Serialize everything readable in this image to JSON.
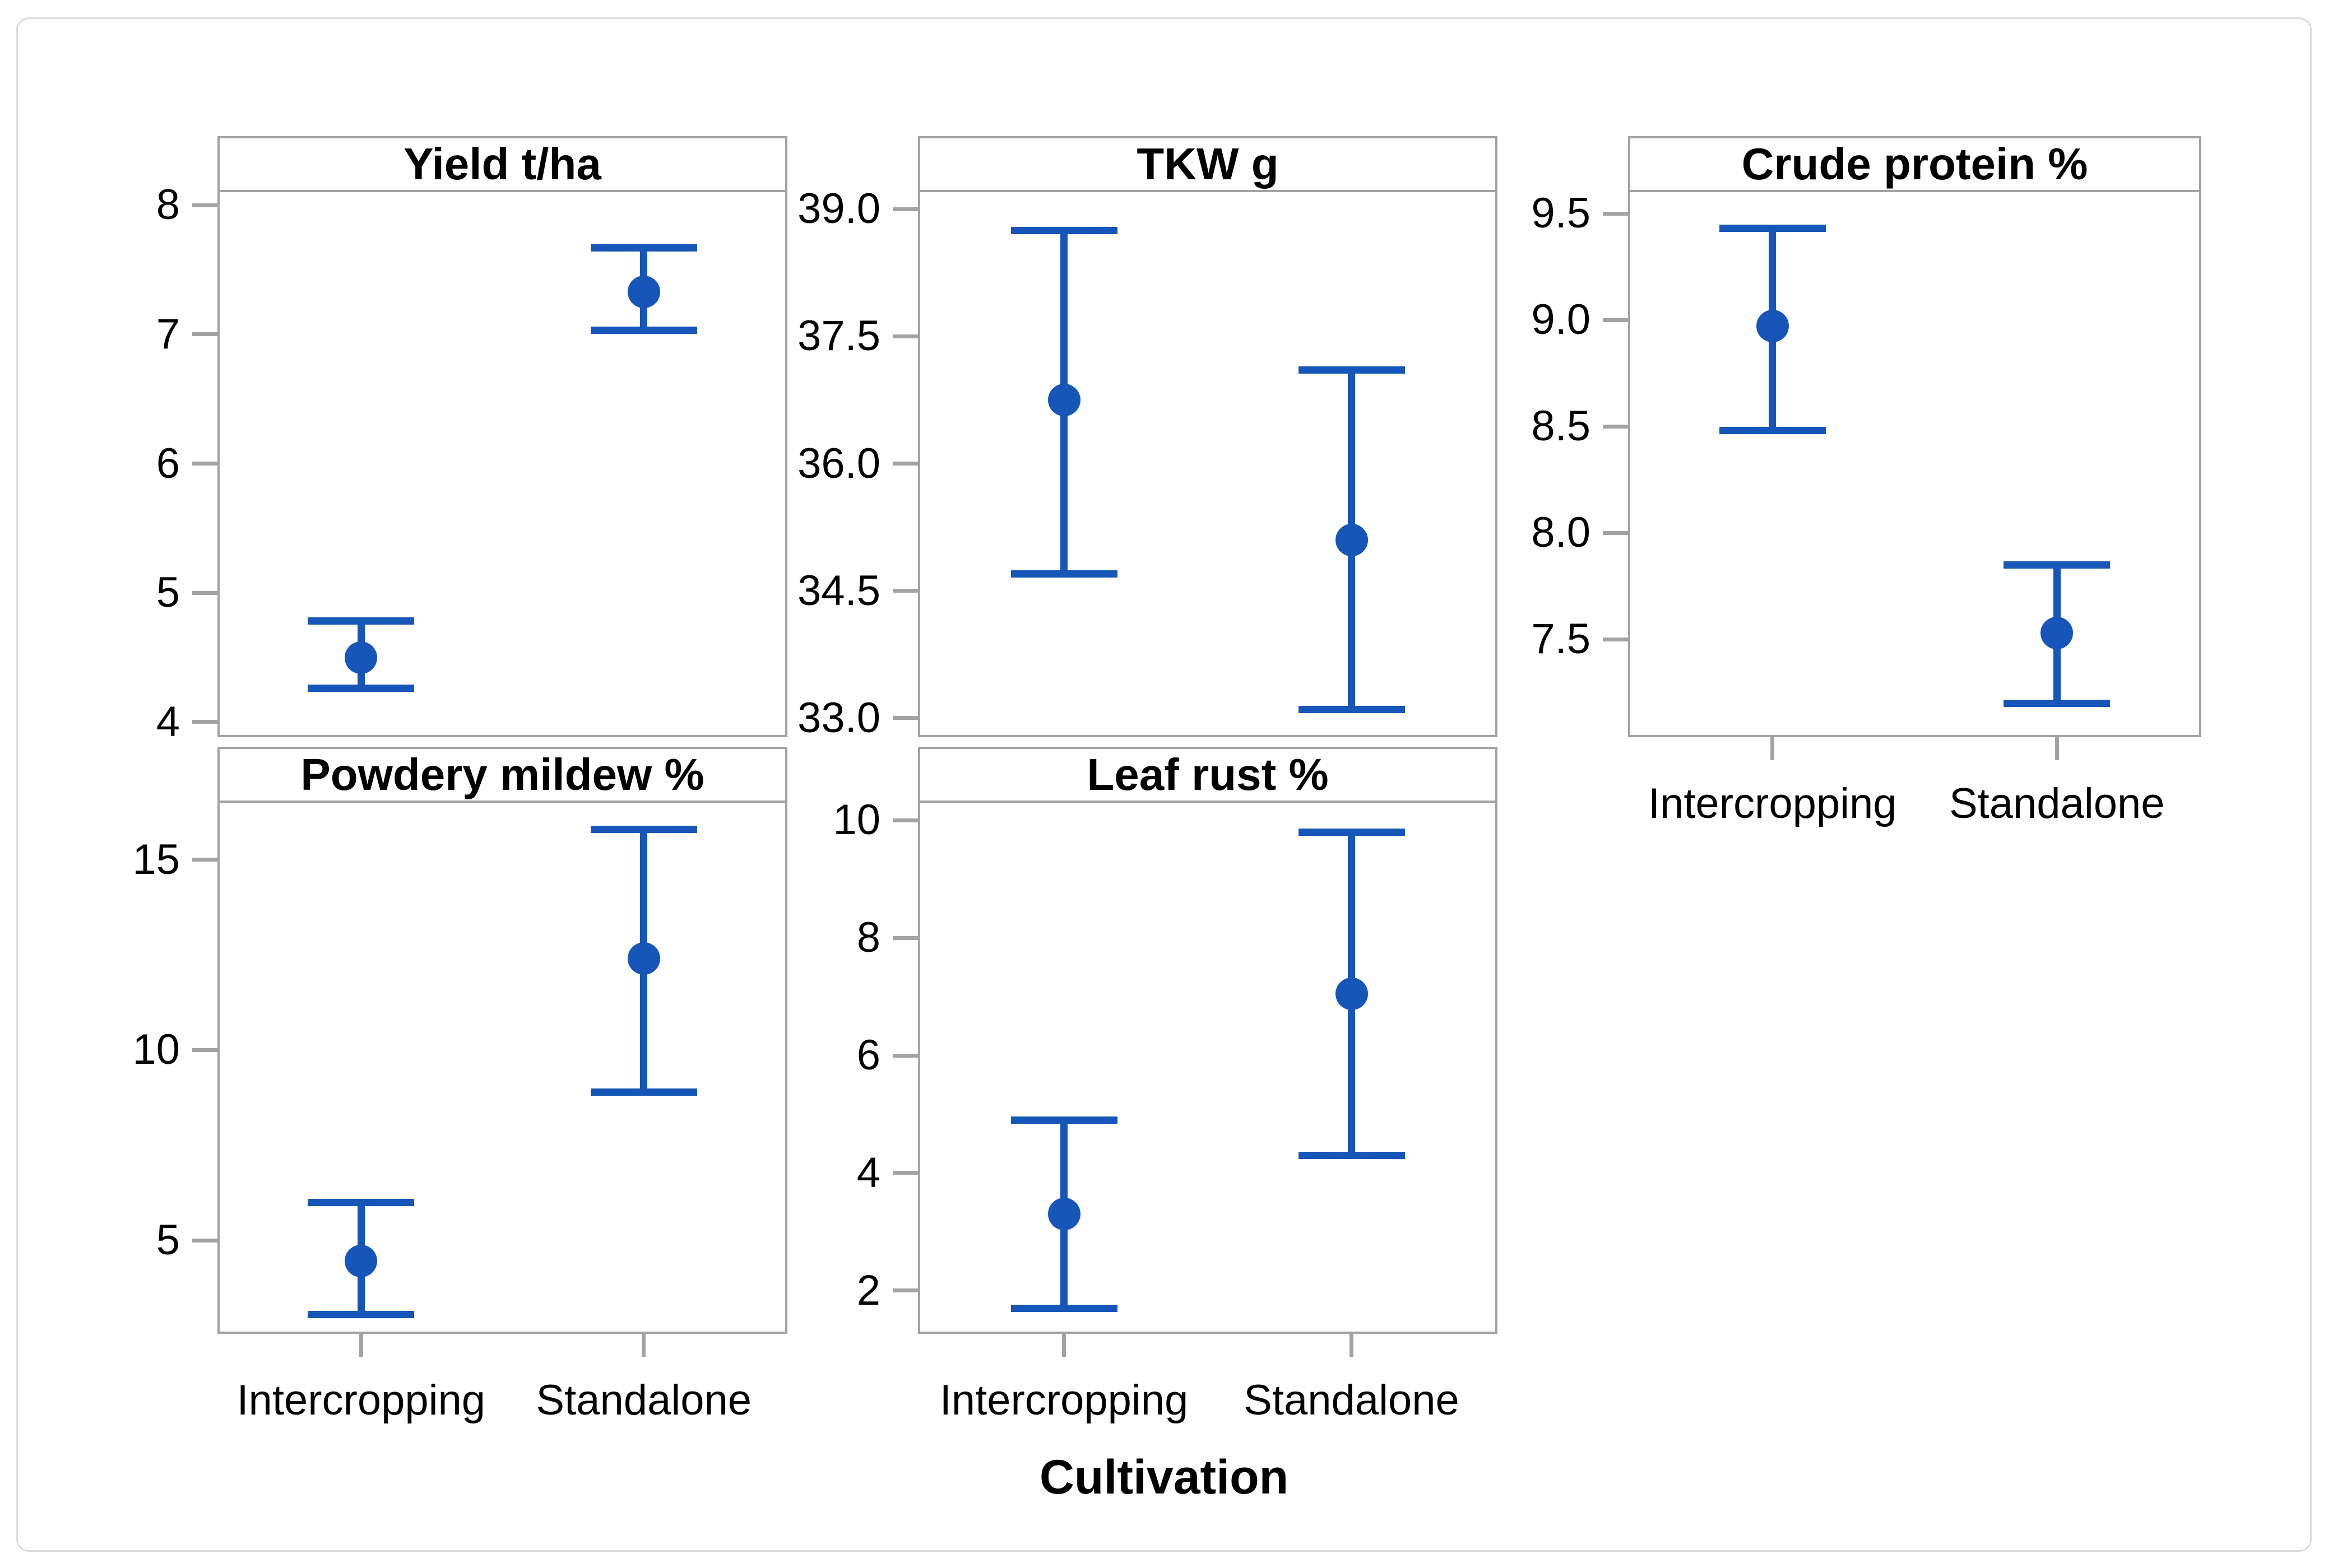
{
  "figure": {
    "xlabel": "Cultivation",
    "categories": [
      "Intercropping",
      "Standalone"
    ],
    "colors": {
      "marker_blue": "#1656b8",
      "frame_gray": "#a3a3a3",
      "outer_border_gray": "#dcdcdc",
      "text_black": "#000000",
      "background": "#ffffff"
    }
  },
  "chart_data": {
    "type": "scatter",
    "subtype": "means_with_error_bars",
    "xlabel": "Cultivation",
    "categories": [
      "Intercropping",
      "Standalone"
    ],
    "grid": false,
    "legend": "none",
    "panels": [
      {
        "title": "Yield t/ha",
        "row": 1,
        "col": 1,
        "ylim": [
          3.9,
          8.1
        ],
        "yticks": [
          4,
          5,
          6,
          7,
          8
        ],
        "tick_decimals": 0,
        "show_x_labels": false,
        "series": [
          {
            "category": "Intercropping",
            "mean": 4.5,
            "ci_low": 4.26,
            "ci_high": 4.78
          },
          {
            "category": "Standalone",
            "mean": 7.33,
            "ci_low": 7.03,
            "ci_high": 7.67
          }
        ]
      },
      {
        "title": "TKW g",
        "row": 1,
        "col": 2,
        "ylim": [
          32.8,
          39.2
        ],
        "yticks": [
          33.0,
          34.5,
          36.0,
          37.5,
          39.0
        ],
        "tick_decimals": 1,
        "show_x_labels": false,
        "series": [
          {
            "category": "Intercropping",
            "mean": 36.75,
            "ci_low": 34.7,
            "ci_high": 38.75
          },
          {
            "category": "Standalone",
            "mean": 35.1,
            "ci_low": 33.1,
            "ci_high": 37.1
          }
        ]
      },
      {
        "title": "Crude protein %",
        "row": 1,
        "col": 3,
        "ylim": [
          7.05,
          9.6
        ],
        "yticks": [
          7.5,
          8.0,
          8.5,
          9.0,
          9.5
        ],
        "tick_decimals": 1,
        "show_x_labels": true,
        "series": [
          {
            "category": "Intercropping",
            "mean": 8.97,
            "ci_low": 8.48,
            "ci_high": 9.43
          },
          {
            "category": "Standalone",
            "mean": 7.53,
            "ci_low": 7.2,
            "ci_high": 7.85
          }
        ]
      },
      {
        "title": "Powdery mildew %",
        "row": 2,
        "col": 1,
        "ylim": [
          2.6,
          16.5
        ],
        "yticks": [
          5,
          10,
          15
        ],
        "tick_decimals": 0,
        "show_x_labels": true,
        "series": [
          {
            "category": "Intercropping",
            "mean": 4.45,
            "ci_low": 3.05,
            "ci_high": 6.0
          },
          {
            "category": "Standalone",
            "mean": 12.4,
            "ci_low": 8.9,
            "ci_high": 15.8
          }
        ]
      },
      {
        "title": "Leaf rust %",
        "row": 2,
        "col": 2,
        "ylim": [
          1.3,
          10.3
        ],
        "yticks": [
          2,
          4,
          6,
          8,
          10
        ],
        "tick_decimals": 0,
        "show_x_labels": true,
        "series": [
          {
            "category": "Intercropping",
            "mean": 3.3,
            "ci_low": 1.7,
            "ci_high": 4.9
          },
          {
            "category": "Standalone",
            "mean": 7.05,
            "ci_low": 4.3,
            "ci_high": 9.8
          }
        ]
      }
    ]
  }
}
